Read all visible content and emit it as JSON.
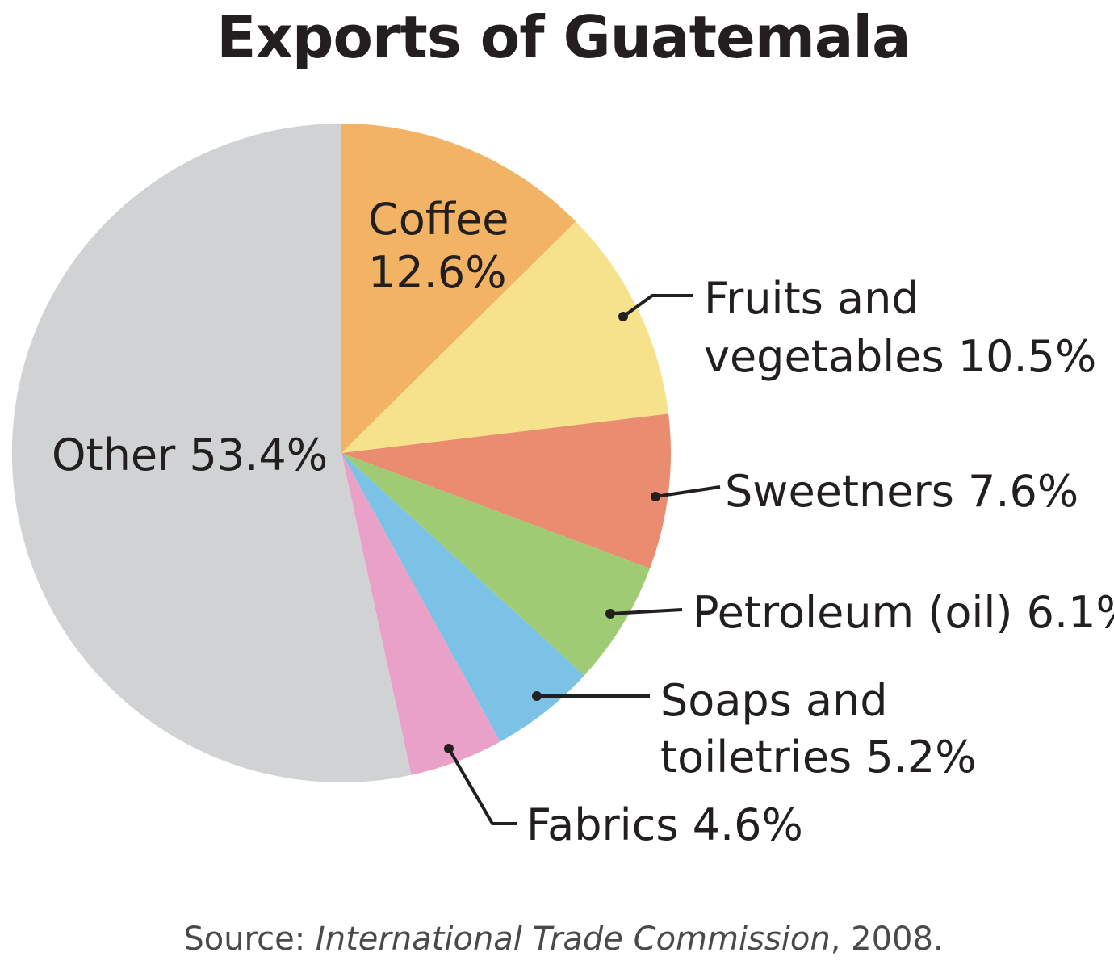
{
  "chart_data": {
    "type": "pie",
    "title": "Exports of Guatemala",
    "slices": [
      {
        "name": "Coffee",
        "value": 12.6,
        "value_label": "12.6%",
        "color": "#f2b365"
      },
      {
        "name": "Fruits and vegetables",
        "value": 10.5,
        "value_label": "10.5%",
        "color": "#f7e28c"
      },
      {
        "name": "Sweetners",
        "value": 7.6,
        "value_label": "7.6%",
        "color": "#ea8c70"
      },
      {
        "name": "Petroleum (oil)",
        "value": 6.1,
        "value_label": "6.1%",
        "color": "#9fcb74"
      },
      {
        "name": "Soaps and toiletries",
        "value": 5.2,
        "value_label": "5.2%",
        "color": "#7cc2e6"
      },
      {
        "name": "Fabrics",
        "value": 4.6,
        "value_label": "4.6%",
        "color": "#eaa1c8"
      },
      {
        "name": "Other",
        "value": 53.4,
        "value_label": "53.4%",
        "color": "#d1d2d4"
      }
    ],
    "start": "12 o'clock",
    "direction": "clockwise",
    "source": {
      "prefix": "Source: ",
      "publisher": "International Trade Commission",
      "suffix": ", 2008."
    }
  }
}
